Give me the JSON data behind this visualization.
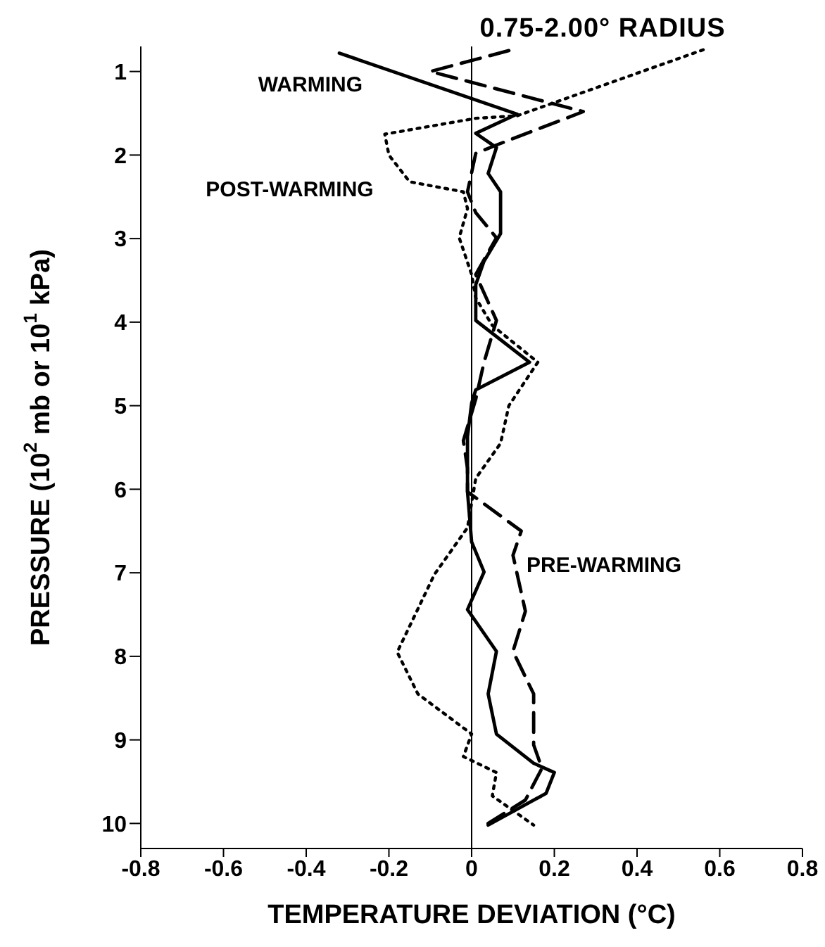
{
  "chart_data": {
    "type": "line",
    "title": "0.75-2.00° RADIUS",
    "xlabel": "TEMPERATURE DEVIATION (°C)",
    "ylabel": "PRESSURE (10$^{2}$ mb or 10$^{1}$ kPa)",
    "xlim": [
      -0.8,
      0.8
    ],
    "xticks": [
      -0.8,
      -0.6,
      -0.4,
      -0.2,
      {
        "value": 0,
        "label": "0"
      },
      0.2,
      0.4,
      0.6,
      0.8
    ],
    "ylim": [
      10.3,
      0.7
    ],
    "yticks": [
      1,
      2,
      3,
      4,
      5,
      6,
      7,
      8,
      9,
      10
    ],
    "marker": "none",
    "ref_lines": [
      {
        "axis": "x",
        "value": 0,
        "color": "#000000",
        "line_style": "solid"
      }
    ],
    "series": [
      {
        "name": "WARMING",
        "color": "#000000",
        "line_style": "solid",
        "x": [
          -0.32,
          0.11,
          0.01,
          0.06,
          0.04,
          0.07,
          0.07,
          0.03,
          0.01,
          0.01,
          0.14,
          0.01,
          0,
          -0.01,
          -0.01,
          0,
          0.03,
          -0.01,
          0.06,
          0.04,
          0.06,
          0.15,
          0.2,
          0.18,
          0.04
        ],
        "values": [
          0.78,
          1.51,
          1.74,
          1.91,
          2.22,
          2.44,
          2.94,
          3.27,
          3.55,
          3.98,
          4.48,
          4.81,
          4.97,
          5.37,
          6.03,
          6.63,
          6.99,
          7.44,
          7.94,
          8.45,
          8.93,
          9.28,
          9.39,
          9.64,
          10.02
        ]
      },
      {
        "name": "PRE-WARMING",
        "color": "#000000",
        "line_style": "dashed",
        "x": [
          0.09,
          -0.1,
          0.27,
          0.06,
          0.01,
          -0.01,
          0.01,
          0.06,
          0.01,
          0.04,
          0.06,
          0.03,
          0.01,
          -0.02,
          -0.01,
          -0.01,
          0.12,
          0.1,
          0.13,
          0.1,
          0.15,
          0.15,
          0.17,
          0.13,
          0.04
        ],
        "values": [
          0.75,
          1.0,
          1.48,
          1.88,
          1.98,
          2.44,
          2.69,
          2.99,
          3.43,
          3.76,
          3.98,
          4.48,
          4.92,
          5.42,
          5.75,
          6.03,
          6.5,
          6.79,
          7.46,
          7.94,
          8.45,
          9.06,
          9.34,
          9.72,
          10.0
        ]
      },
      {
        "name": "POST-WARMING",
        "color": "#000000",
        "line_style": "dotted",
        "x": [
          0.56,
          0.11,
          0.01,
          -0.21,
          -0.2,
          -0.15,
          -0.02,
          -0.01,
          -0.03,
          0,
          0.01,
          0.05,
          0.16,
          0.09,
          0.07,
          0.01,
          -0.01,
          -0.09,
          -0.18,
          -0.13,
          0,
          -0.02,
          0.06,
          0.05,
          0.15
        ],
        "values": [
          0.74,
          1.53,
          1.56,
          1.75,
          2.0,
          2.32,
          2.44,
          2.64,
          2.99,
          3.43,
          3.71,
          4.04,
          4.48,
          5.0,
          5.45,
          5.87,
          6.46,
          7.02,
          7.95,
          8.45,
          8.93,
          9.2,
          9.39,
          9.67,
          10.02
        ]
      }
    ]
  }
}
